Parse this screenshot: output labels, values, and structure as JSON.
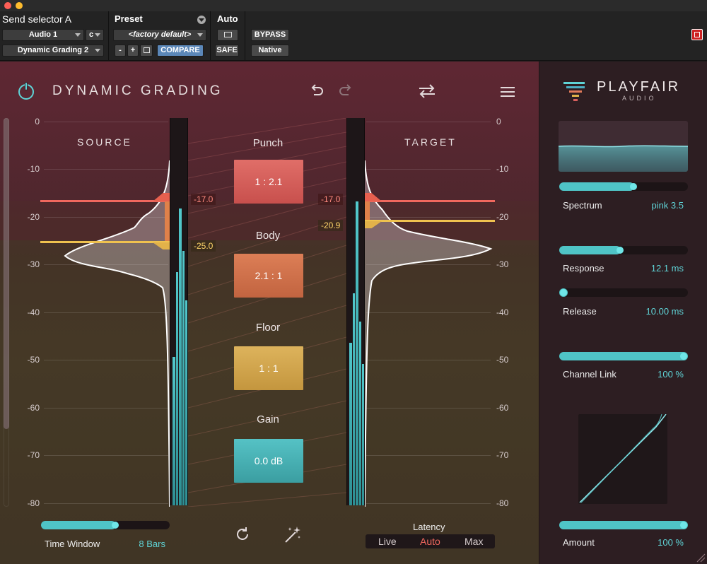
{
  "host": {
    "send_selector": "Send selector A",
    "track": "Audio 1",
    "channel": "c",
    "insert": "Dynamic Grading 2",
    "preset_label": "Preset",
    "preset_value": "<factory default>",
    "minus": "-",
    "plus": "+",
    "compare": "COMPARE",
    "auto_label": "Auto",
    "safe": "SAFE",
    "bypass": "BYPASS",
    "native": "Native"
  },
  "plugin": {
    "title": "DYNAMIC GRADING",
    "brand": "PLAYFAIR",
    "brand_sub": "AUDIO",
    "icons": [
      "power-icon",
      "undo-icon",
      "redo-icon",
      "swap-icon",
      "menu-icon",
      "reset-icon",
      "magic-wand-icon"
    ]
  },
  "scale": [
    "0",
    "-10",
    "-20",
    "-30",
    "-40",
    "-50",
    "-60",
    "-70",
    "-80"
  ],
  "source": {
    "label": "SOURCE",
    "thr_high": "-17.0",
    "thr_low": "-25.0"
  },
  "target": {
    "label": "TARGET",
    "thr_high": "-17.0",
    "thr_low": "-20.9"
  },
  "stages": {
    "punch": {
      "label": "Punch",
      "value": "1 : 2.1"
    },
    "body": {
      "label": "Body",
      "value": "2.1 : 1"
    },
    "floor": {
      "label": "Floor",
      "value": "1 : 1"
    },
    "gain": {
      "label": "Gain",
      "value": "0.0 dB"
    }
  },
  "time_window": {
    "label": "Time Window",
    "value": "8 Bars",
    "level": 0.58
  },
  "latency": {
    "label": "Latency",
    "options": [
      "Live",
      "Auto",
      "Max"
    ],
    "selected": "Auto"
  },
  "params": {
    "spectrum": {
      "label": "Spectrum",
      "value": "pink 3.5",
      "level": 0.58
    },
    "response": {
      "label": "Response",
      "value": "12.1 ms",
      "level": 0.48
    },
    "release": {
      "label": "Release",
      "value": "10.00 ms",
      "level": 0.0
    },
    "channel_link": {
      "label": "Channel Link",
      "value": "100 %",
      "level": 1.0
    },
    "amount": {
      "label": "Amount",
      "value": "100 %",
      "level": 1.0
    }
  },
  "colors": {
    "accent": "#5fd3d6",
    "punch": "#d9605e",
    "body": "#d4764d",
    "floor": "#d2a84b",
    "gain": "#4cb8bb",
    "thr_high": "#f0685e",
    "thr_low": "#efc24f"
  }
}
